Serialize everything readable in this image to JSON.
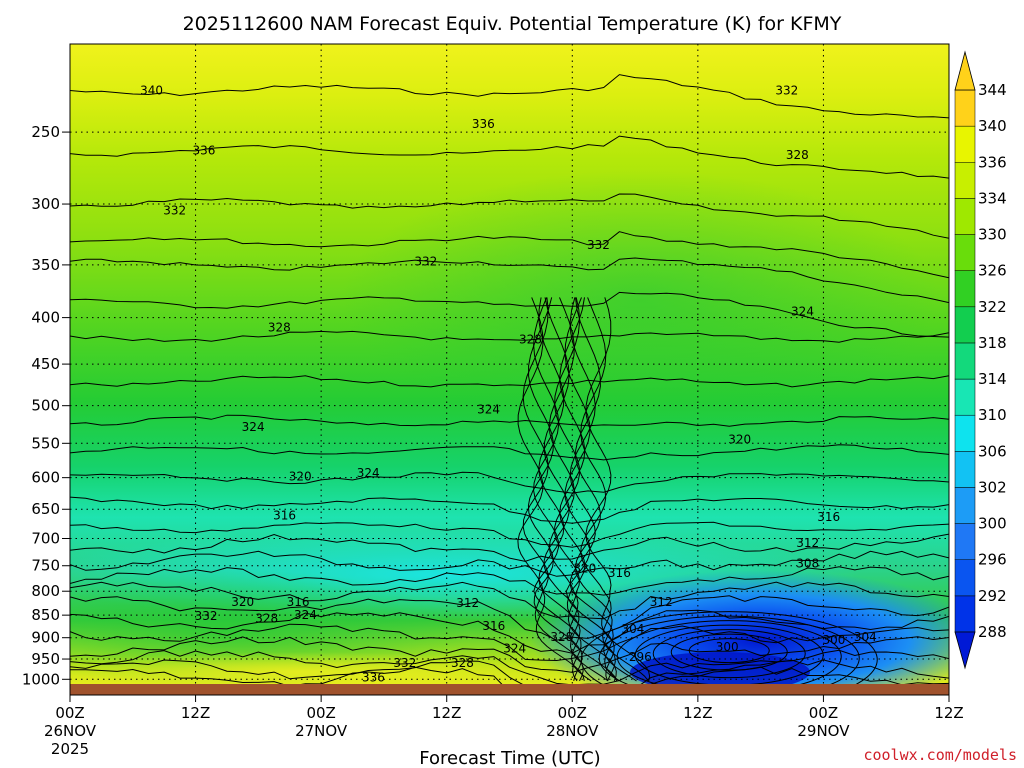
{
  "chart_data": {
    "type": "heatmap",
    "title": "2025112600 NAM Forecast Equiv. Potential Temperature (K) for KFMY",
    "xlabel": "Forecast Time (UTC)",
    "ylabel": "",
    "x_ticks": [
      {
        "hours": 0,
        "label": "00Z",
        "sub1": "26NOV",
        "sub2": "2025"
      },
      {
        "hours": 12,
        "label": "12Z",
        "sub1": "",
        "sub2": ""
      },
      {
        "hours": 24,
        "label": "00Z",
        "sub1": "27NOV",
        "sub2": ""
      },
      {
        "hours": 36,
        "label": "12Z",
        "sub1": "",
        "sub2": ""
      },
      {
        "hours": 48,
        "label": "00Z",
        "sub1": "28NOV",
        "sub2": ""
      },
      {
        "hours": 60,
        "label": "12Z",
        "sub1": "",
        "sub2": ""
      },
      {
        "hours": 72,
        "label": "00Z",
        "sub1": "29NOV",
        "sub2": ""
      },
      {
        "hours": 84,
        "label": "12Z",
        "sub1": "",
        "sub2": ""
      }
    ],
    "xlim_hours": [
      0,
      84
    ],
    "y_ticks": [
      250,
      300,
      350,
      400,
      450,
      500,
      550,
      600,
      650,
      700,
      750,
      800,
      850,
      900,
      950,
      1000
    ],
    "ylim_hPa": [
      1012,
      200
    ],
    "y_scale": "log-pressure",
    "grid": true,
    "colorbar": {
      "levels": [
        288,
        292,
        296,
        300,
        302,
        306,
        310,
        314,
        318,
        322,
        326,
        330,
        334,
        336,
        340,
        344
      ],
      "labels": [
        "288",
        "292",
        "296",
        "300",
        "302",
        "306",
        "310",
        "314",
        "318",
        "322",
        "326",
        "330",
        "334",
        "336",
        "340",
        "344"
      ],
      "colors": [
        "#0019d6",
        "#0033e8",
        "#0a55f0",
        "#1f78f5",
        "#1d9cf6",
        "#12c2f3",
        "#0ee3ee",
        "#18e6b4",
        "#13d97c",
        "#12ce4f",
        "#31d023",
        "#69dd0b",
        "#9fe800",
        "#c8ef00",
        "#e8f500",
        "#ffd21a"
      ],
      "position": "right"
    },
    "contour_labels": [
      {
        "x": 7.8,
        "p": 225,
        "value": "340"
      },
      {
        "x": 12.8,
        "p": 262,
        "value": "336"
      },
      {
        "x": 39.5,
        "p": 245,
        "value": "336"
      },
      {
        "x": 68.5,
        "p": 225,
        "value": "332"
      },
      {
        "x": 69.5,
        "p": 265,
        "value": "328"
      },
      {
        "x": 10,
        "p": 305,
        "value": "332"
      },
      {
        "x": 50.5,
        "p": 333,
        "value": "332"
      },
      {
        "x": 34,
        "p": 347,
        "value": "332"
      },
      {
        "x": 70,
        "p": 394,
        "value": "324"
      },
      {
        "x": 20,
        "p": 410,
        "value": "328"
      },
      {
        "x": 44,
        "p": 423,
        "value": "328"
      },
      {
        "x": 40,
        "p": 505,
        "value": "324"
      },
      {
        "x": 17.5,
        "p": 528,
        "value": "324"
      },
      {
        "x": 64,
        "p": 545,
        "value": "320"
      },
      {
        "x": 28.5,
        "p": 593,
        "value": "324"
      },
      {
        "x": 22,
        "p": 598,
        "value": "320"
      },
      {
        "x": 20.5,
        "p": 660,
        "value": "316"
      },
      {
        "x": 72.5,
        "p": 663,
        "value": "316"
      },
      {
        "x": 70.5,
        "p": 708,
        "value": "312"
      },
      {
        "x": 70.5,
        "p": 746,
        "value": "308"
      },
      {
        "x": 49.2,
        "p": 755,
        "value": "320"
      },
      {
        "x": 52.5,
        "p": 764,
        "value": "316"
      },
      {
        "x": 16.5,
        "p": 822,
        "value": "320"
      },
      {
        "x": 21.8,
        "p": 822,
        "value": "316"
      },
      {
        "x": 38,
        "p": 824,
        "value": "312"
      },
      {
        "x": 56.5,
        "p": 822,
        "value": "312"
      },
      {
        "x": 13,
        "p": 852,
        "value": "332"
      },
      {
        "x": 18.8,
        "p": 857,
        "value": "328"
      },
      {
        "x": 22.5,
        "p": 850,
        "value": "324"
      },
      {
        "x": 40.5,
        "p": 874,
        "value": "316"
      },
      {
        "x": 53.8,
        "p": 880,
        "value": "304"
      },
      {
        "x": 47,
        "p": 898,
        "value": "328"
      },
      {
        "x": 42.5,
        "p": 925,
        "value": "324"
      },
      {
        "x": 62.8,
        "p": 922,
        "value": "300"
      },
      {
        "x": 73,
        "p": 905,
        "value": "300"
      },
      {
        "x": 76,
        "p": 898,
        "value": "304"
      },
      {
        "x": 54.5,
        "p": 945,
        "value": "296"
      },
      {
        "x": 32,
        "p": 960,
        "value": "332"
      },
      {
        "x": 37.5,
        "p": 960,
        "value": "328"
      },
      {
        "x": 29,
        "p": 995,
        "value": "336"
      }
    ]
  },
  "watermark": "coolwx.com/models"
}
